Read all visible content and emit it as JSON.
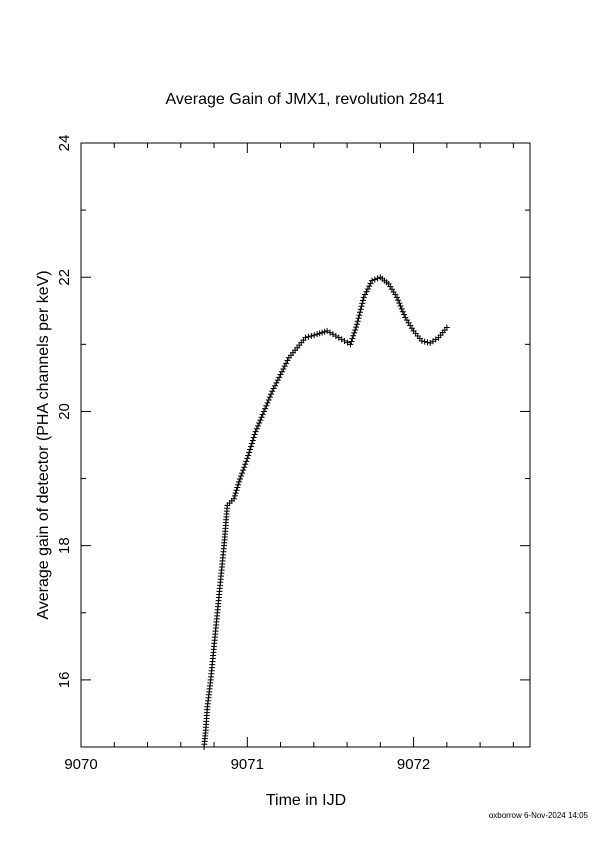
{
  "chart_data": {
    "type": "scatter",
    "title": "Average Gain of JMX1, revolution 2841",
    "xlabel": "Time in IJD",
    "ylabel": "Average gain of detector (PHA channels per keV)",
    "xlim": [
      9070,
      9072.7
    ],
    "ylim": [
      15,
      24
    ],
    "x_ticks": [
      "9070",
      "9071",
      "9072"
    ],
    "y_ticks": [
      "16",
      "18",
      "20",
      "22",
      "24"
    ],
    "grid": false,
    "legend": "none",
    "marker": "plus",
    "series": [
      {
        "points": [
          [
            9070.74,
            15.0
          ],
          [
            9070.75,
            15.25
          ],
          [
            9070.76,
            15.6
          ],
          [
            9070.78,
            16.0
          ],
          [
            9070.8,
            16.5
          ],
          [
            9070.82,
            17.0
          ],
          [
            9070.84,
            17.5
          ],
          [
            9070.86,
            18.0
          ],
          [
            9070.87,
            18.3
          ],
          [
            9070.88,
            18.6
          ],
          [
            9070.92,
            18.7
          ],
          [
            9070.95,
            18.95
          ],
          [
            9071.0,
            19.3
          ],
          [
            9071.05,
            19.7
          ],
          [
            9071.1,
            20.0
          ],
          [
            9071.15,
            20.3
          ],
          [
            9071.2,
            20.55
          ],
          [
            9071.25,
            20.8
          ],
          [
            9071.3,
            20.95
          ],
          [
            9071.35,
            21.1
          ],
          [
            9071.42,
            21.15
          ],
          [
            9071.48,
            21.2
          ],
          [
            9071.55,
            21.1
          ],
          [
            9071.62,
            21.0
          ],
          [
            9071.66,
            21.3
          ],
          [
            9071.7,
            21.7
          ],
          [
            9071.75,
            21.95
          ],
          [
            9071.8,
            22.0
          ],
          [
            9071.85,
            21.9
          ],
          [
            9071.9,
            21.7
          ],
          [
            9071.95,
            21.4
          ],
          [
            9072.0,
            21.2
          ],
          [
            9072.05,
            21.05
          ],
          [
            9072.1,
            21.02
          ],
          [
            9072.15,
            21.1
          ],
          [
            9072.2,
            21.25
          ]
        ]
      }
    ]
  },
  "footer": {
    "credit": "oxborrow  6-Nov-2024 14:05"
  }
}
